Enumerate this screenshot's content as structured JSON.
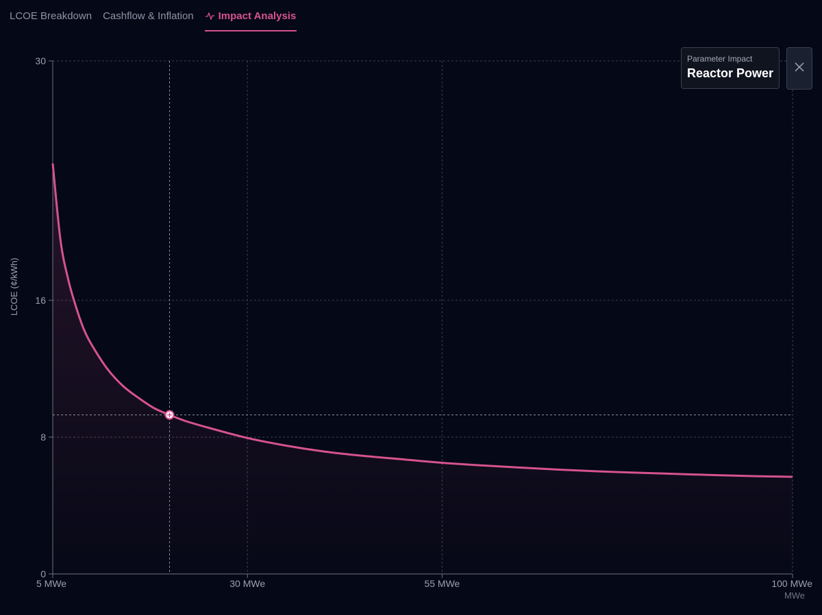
{
  "tabs": [
    {
      "label": "LCOE Breakdown",
      "active": false
    },
    {
      "label": "Cashflow & Inflation",
      "active": false
    },
    {
      "label": "Impact Analysis",
      "active": true,
      "icon": "activity-icon"
    }
  ],
  "panel": {
    "label": "Parameter Impact",
    "value": "Reactor Power"
  },
  "colors": {
    "background": "#050816",
    "accent": "#d6538f",
    "grid": "#3b4150",
    "axis_text": "#9aa0b0"
  },
  "chart_data": {
    "type": "area",
    "xlabel": "",
    "x_unit_label": "MWe",
    "ylabel": "LCOE (¢/kWh)",
    "xlim": [
      5,
      100
    ],
    "ylim": [
      0,
      30
    ],
    "x_ticks": [
      5,
      30,
      55,
      100
    ],
    "x_tick_labels": [
      "5 MWe",
      "30 MWe",
      "55 MWe",
      "100 MWe"
    ],
    "y_ticks": [
      0,
      8,
      16,
      30
    ],
    "y_tick_labels": [
      "0",
      "8",
      "16",
      "30"
    ],
    "grid": true,
    "marker": {
      "x": 20,
      "y": 9.3
    },
    "series": [
      {
        "x": [
          5,
          6,
          7,
          8,
          9,
          10,
          12,
          14,
          16,
          18,
          20,
          22,
          25,
          30,
          35,
          40,
          45,
          50,
          55,
          60,
          65,
          70,
          75,
          80,
          85,
          90,
          95,
          100
        ],
        "y": [
          24,
          19.5,
          17.2,
          15.6,
          14.3,
          13.4,
          12.0,
          11.0,
          10.3,
          9.7,
          9.3,
          8.95,
          8.55,
          7.95,
          7.5,
          7.15,
          6.9,
          6.7,
          6.5,
          6.35,
          6.22,
          6.1,
          6.0,
          5.92,
          5.85,
          5.78,
          5.72,
          5.68
        ]
      }
    ]
  }
}
